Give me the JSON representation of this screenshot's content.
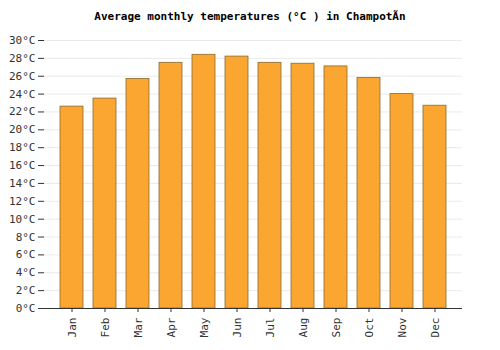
{
  "chart_data": {
    "type": "bar",
    "title": "Average monthly temperatures (°C ) in ChampotÃn",
    "categories": [
      "Jan",
      "Feb",
      "Mar",
      "Apr",
      "May",
      "Jun",
      "Jul",
      "Aug",
      "Sep",
      "Oct",
      "Nov",
      "Dec"
    ],
    "values": [
      22.6,
      23.5,
      25.7,
      27.5,
      28.4,
      28.2,
      27.5,
      27.4,
      27.1,
      25.8,
      24.0,
      22.7
    ],
    "color": "#fba631",
    "ylim": [
      0,
      30
    ],
    "yticks": [
      {
        "value": 0,
        "label": "0°C"
      },
      {
        "value": 2,
        "label": "2°C"
      },
      {
        "value": 4,
        "label": "4°C"
      },
      {
        "value": 6,
        "label": "6°C"
      },
      {
        "value": 8,
        "label": "8°C"
      },
      {
        "value": 10,
        "label": "10°C"
      },
      {
        "value": 12,
        "label": "12°C"
      },
      {
        "value": 14,
        "label": "14°C"
      },
      {
        "value": 16,
        "label": "16°C"
      },
      {
        "value": 18,
        "label": "18°C"
      },
      {
        "value": 20,
        "label": "20°C"
      },
      {
        "value": 22,
        "label": "22°C"
      },
      {
        "value": 24,
        "label": "24°C"
      },
      {
        "value": 26,
        "label": "26°C"
      },
      {
        "value": 28,
        "label": "28°C"
      },
      {
        "value": 30,
        "label": "30°C"
      }
    ],
    "grid": true
  }
}
